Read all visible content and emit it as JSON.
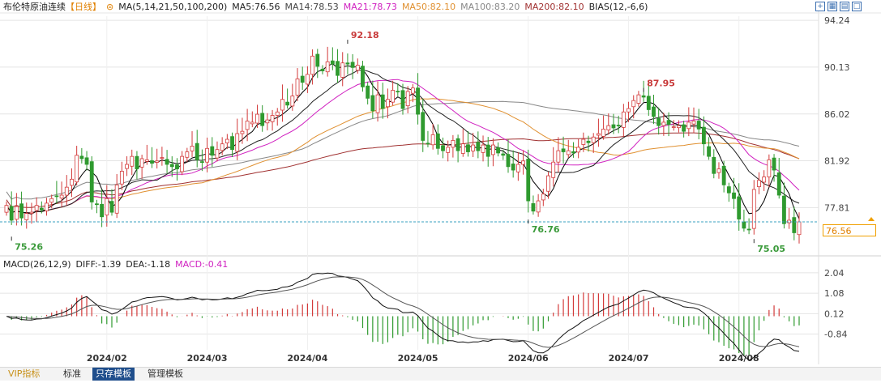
{
  "header": {
    "title": "布伦特原油连续",
    "period": "【日线】",
    "ma_label": "MA(5,14,21,50,100,200)",
    "ma5": "MA5:76.56",
    "ma14": "MA14:78.53",
    "ma21": "MA21:78.73",
    "ma50": "MA50:82.10",
    "ma100": "MA100:83.20",
    "ma200": "MA200:82.10",
    "bias": "BIAS(12,-6,6)"
  },
  "macd_header": {
    "label": "MACD(26,12,9)",
    "diff": "DIFF:-1.39",
    "dea": "DEA:-1.18",
    "macd": "MACD:-0.41"
  },
  "current_price": "76.56",
  "colors": {
    "up": "#d33a3a",
    "down": "#2f9a2f",
    "ma5": "#000000",
    "ma14": "#222222",
    "ma21": "#d020c0",
    "ma50": "#e09030",
    "ma100": "#888888",
    "ma200": "#a03030",
    "accent": "#f0a000",
    "grid": "#e4e4e4"
  },
  "bottom_tabs": [
    "VIP指标",
    "标准",
    "只存模板",
    "管理模板"
  ],
  "toolbar_icons": [
    "fullscreen-icon",
    "grid-icon",
    "layout-icon",
    "window-icon"
  ],
  "chart_data": [
    {
      "type": "candlestick",
      "title": "布伦特原油连续",
      "ylim": [
        74.0,
        94.6
      ],
      "y_ticks": [
        "94.24",
        "90.13",
        "86.02",
        "81.92",
        "77.81"
      ],
      "x_ticks": [
        {
          "label": "2024/02",
          "index": 20
        },
        {
          "label": "2024/03",
          "index": 40
        },
        {
          "label": "2024/04",
          "index": 60
        },
        {
          "label": "2024/05",
          "index": 82
        },
        {
          "label": "2024/06",
          "index": 104
        },
        {
          "label": "2024/07",
          "index": 124
        },
        {
          "label": "2024/08",
          "index": 146
        }
      ],
      "annotations": [
        {
          "text": "92.18",
          "index": 68,
          "value": 92.18,
          "kind": "high"
        },
        {
          "text": "75.26",
          "index": 1,
          "value": 75.26,
          "kind": "low"
        },
        {
          "text": "76.76",
          "index": 104,
          "value": 76.76,
          "kind": "low"
        },
        {
          "text": "87.95",
          "index": 127,
          "value": 87.95,
          "kind": "high"
        },
        {
          "text": "75.05",
          "index": 149,
          "value": 75.05,
          "kind": "low"
        }
      ],
      "current_line": 76.56,
      "close_series": [
        78.0,
        76.7,
        77.9,
        76.9,
        77.3,
        77.4,
        78.0,
        77.6,
        78.2,
        78.6,
        78.8,
        78.9,
        79.6,
        80.3,
        82.4,
        82.1,
        81.6,
        78.3,
        78.1,
        77.0,
        78.6,
        77.4,
        79.8,
        81.0,
        81.6,
        82.3,
        81.2,
        82.1,
        82.0,
        81.7,
        81.9,
        82.2,
        81.6,
        81.4,
        81.2,
        82.3,
        82.7,
        83.2,
        82.0,
        81.8,
        83.0,
        82.4,
        82.9,
        83.4,
        83.8,
        82.9,
        84.3,
        84.5,
        85.4,
        85.3,
        86.0,
        85.0,
        85.5,
        85.9,
        86.2,
        87.3,
        86.8,
        87.6,
        89.1,
        88.8,
        89.5,
        91.1,
        90.2,
        89.8,
        90.6,
        90.4,
        89.4,
        90.5,
        90.4,
        90.1,
        90.3,
        88.4,
        87.4,
        86.3,
        87.7,
        86.5,
        87.3,
        88.1,
        88.0,
        86.5,
        88.0,
        88.3,
        86.0,
        83.7,
        83.4,
        84.2,
        83.0,
        82.8,
        83.1,
        83.7,
        82.8,
        83.4,
        82.7,
        83.3,
        82.8,
        83.3,
        82.3,
        83.3,
        82.6,
        82.4,
        81.4,
        81.1,
        81.6,
        81.9,
        78.4,
        77.5,
        78.4,
        79.0,
        80.6,
        81.8,
        82.8,
        82.7,
        82.8,
        82.6,
        83.1,
        83.8,
        83.5,
        84.0,
        84.3,
        84.7,
        85.0,
        84.8,
        85.0,
        86.2,
        86.5,
        87.2,
        87.7,
        87.5,
        86.4,
        85.8,
        85.0,
        85.3,
        85.1,
        84.9,
        85.0,
        84.5,
        85.3,
        85.4,
        84.7,
        83.4,
        82.3,
        80.8,
        81.2,
        79.8,
        79.1,
        78.6,
        76.8,
        76.0,
        75.9,
        79.4,
        80.2,
        80.5,
        82.0,
        81.1,
        78.9,
        76.4,
        76.7,
        75.6,
        76.56
      ],
      "macd_ylim": [
        -1.5,
        2.3
      ],
      "macd_ticks": [
        "2.04",
        "1.08",
        "0.12",
        "-0.84"
      ]
    }
  ]
}
